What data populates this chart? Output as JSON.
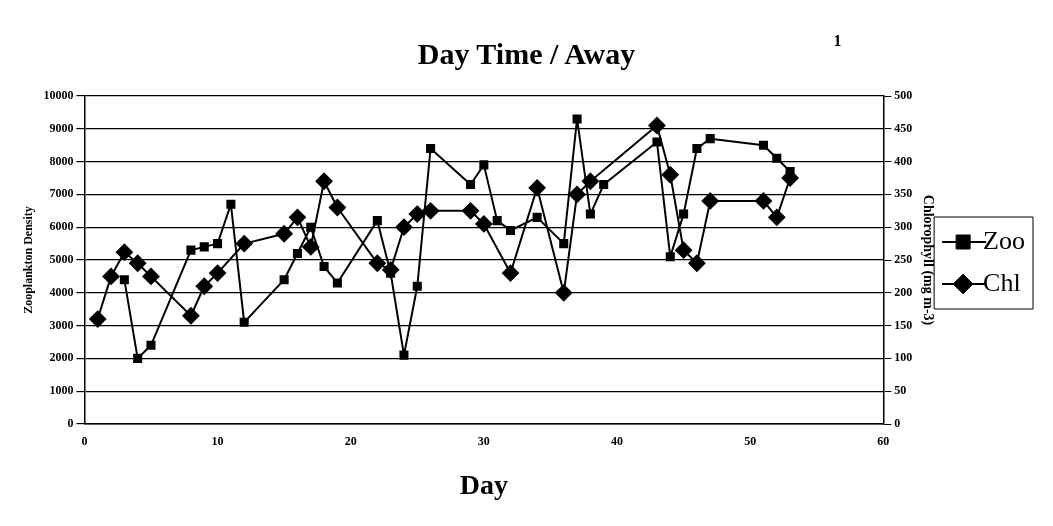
{
  "chart_data": {
    "type": "line",
    "title": "Day Time / Away",
    "xlabel": "Day",
    "ylabel": "Zooplankton Density",
    "y2label": "Chlorophyll (mg m-3)",
    "xlim": [
      0,
      60
    ],
    "xticks": [
      0,
      10,
      20,
      30,
      40,
      50,
      60
    ],
    "ylim": [
      0,
      10000
    ],
    "yticks": [
      0,
      1000,
      2000,
      3000,
      4000,
      5000,
      6000,
      7000,
      8000,
      9000,
      10000
    ],
    "y2lim": [
      0,
      500
    ],
    "y2ticks": [
      0,
      50,
      100,
      150,
      200,
      250,
      300,
      350,
      400,
      450,
      500
    ],
    "grid": "y",
    "legend": "right",
    "annotations": [
      "1"
    ],
    "series": [
      {
        "name": "Zoo",
        "color": "#000000",
        "marker": "square",
        "x": [
          3,
          4,
          5,
          8,
          9,
          10,
          11,
          12,
          15,
          16,
          17,
          18,
          19,
          22,
          23,
          24,
          25,
          26,
          29,
          30,
          31,
          32,
          34,
          36,
          37,
          38,
          39,
          43,
          44,
          45,
          46,
          47,
          51,
          52,
          53
        ],
        "values": [
          4400,
          2000,
          2400,
          5300,
          5400,
          5500,
          6700,
          3100,
          4400,
          5200,
          6000,
          4800,
          4300,
          6200,
          4600,
          2100,
          4200,
          8400,
          7300,
          7900,
          6200,
          5900,
          6300,
          5500,
          9300,
          6400,
          7300,
          8600,
          5100,
          6400,
          8400,
          8700,
          8500,
          8100,
          7700
        ]
      },
      {
        "name": "Chl",
        "color": "#000000",
        "marker": "diamond",
        "axis": "y2",
        "x": [
          1,
          2,
          3,
          4,
          5,
          8,
          9,
          10,
          12,
          15,
          16,
          17,
          18,
          19,
          22,
          23,
          24,
          25,
          26,
          29,
          30,
          32,
          34,
          36,
          37,
          38,
          43,
          44,
          45,
          46,
          47,
          51,
          52,
          53
        ],
        "values": [
          160,
          225,
          262,
          245,
          225,
          165,
          210,
          230,
          275,
          290,
          315,
          270,
          370,
          330,
          245,
          235,
          300,
          320,
          325,
          325,
          305,
          230,
          360,
          200,
          350,
          370,
          455,
          380,
          265,
          245,
          340,
          340,
          315,
          375
        ]
      }
    ]
  }
}
